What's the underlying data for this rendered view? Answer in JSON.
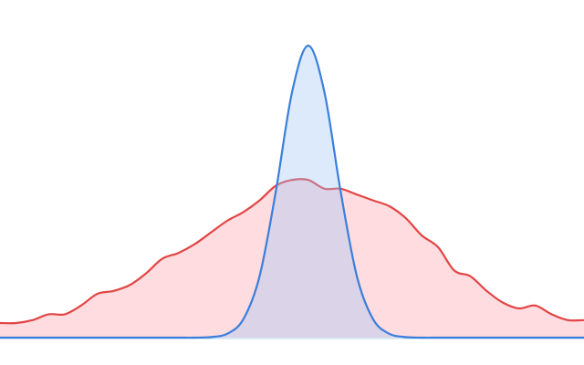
{
  "chart_data": {
    "type": "area",
    "x": [
      -3.8,
      -3.6,
      -3.4,
      -3.2,
      -3.0,
      -2.8,
      -2.6,
      -2.4,
      -2.2,
      -2.0,
      -1.8,
      -1.6,
      -1.4,
      -1.2,
      -1.0,
      -0.8,
      -0.6,
      -0.4,
      -0.2,
      0,
      0.2,
      0.4,
      0.6,
      0.8,
      1.0,
      1.2,
      1.4,
      1.6,
      1.8,
      2.0,
      2.2,
      2.4,
      2.6,
      2.8,
      3.0,
      3.2,
      3.4
    ],
    "series": [
      {
        "color": "#e24545",
        "fill": "#fb9aa3",
        "values": [
          0.05,
          0.05,
          0.06,
          0.08,
          0.08,
          0.11,
          0.15,
          0.16,
          0.18,
          0.22,
          0.27,
          0.29,
          0.32,
          0.36,
          0.4,
          0.43,
          0.47,
          0.52,
          0.54,
          0.54,
          0.51,
          0.51,
          0.49,
          0.47,
          0.45,
          0.41,
          0.35,
          0.31,
          0.23,
          0.21,
          0.16,
          0.12,
          0.1,
          0.11,
          0.08,
          0.06,
          0.06
        ]
      },
      {
        "color": "#3a7fdc",
        "fill": "#9cc3f5",
        "values": [
          0,
          0,
          0,
          0,
          0,
          0,
          0,
          0,
          0,
          0,
          0,
          0,
          0,
          0.002,
          0.013,
          0.063,
          0.21,
          0.5,
          0.84,
          1.0,
          0.84,
          0.5,
          0.21,
          0.063,
          0.013,
          0.002,
          0,
          0,
          0,
          0,
          0,
          0,
          0,
          0,
          0,
          0,
          0
        ]
      }
    ],
    "xlim": [
      -3.8,
      3.4
    ],
    "ylim": [
      0,
      1.0
    ]
  }
}
